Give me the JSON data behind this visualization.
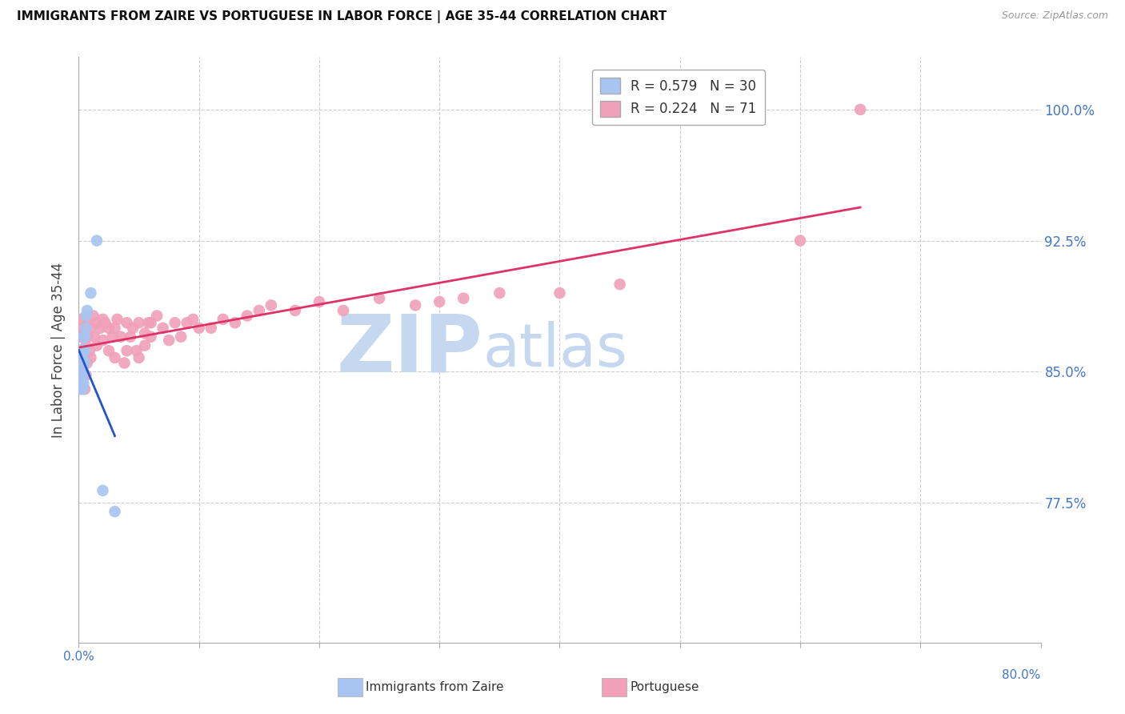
{
  "title": "IMMIGRANTS FROM ZAIRE VS PORTUGUESE IN LABOR FORCE | AGE 35-44 CORRELATION CHART",
  "source": "Source: ZipAtlas.com",
  "ylabel": "In Labor Force | Age 35-44",
  "ytick_labels": [
    "100.0%",
    "92.5%",
    "85.0%",
    "77.5%"
  ],
  "ytick_values": [
    1.0,
    0.925,
    0.85,
    0.775
  ],
  "xmin": 0.0,
  "xmax": 0.8,
  "ymin": 0.695,
  "ymax": 1.03,
  "blue_R": 0.579,
  "blue_N": 30,
  "pink_R": 0.224,
  "pink_N": 71,
  "blue_color": "#a8c4f0",
  "pink_color": "#f0a0b8",
  "blue_line_color": "#2255cc",
  "pink_line_color": "#dd3366",
  "watermark_zip": "ZIP",
  "watermark_atlas": "atlas",
  "watermark_color": "#c5d8f0",
  "legend_label_blue": "Immigrants from Zaire",
  "legend_label_pink": "Portuguese",
  "blue_scatter_x": [
    0.0,
    0.0,
    0.001,
    0.001,
    0.001,
    0.001,
    0.002,
    0.002,
    0.002,
    0.002,
    0.003,
    0.003,
    0.003,
    0.003,
    0.003,
    0.004,
    0.004,
    0.004,
    0.004,
    0.004,
    0.005,
    0.005,
    0.005,
    0.006,
    0.006,
    0.007,
    0.01,
    0.015,
    0.02,
    0.03
  ],
  "blue_scatter_y": [
    0.848,
    0.843,
    0.84,
    0.845,
    0.85,
    0.855,
    0.842,
    0.848,
    0.852,
    0.858,
    0.84,
    0.845,
    0.85,
    0.855,
    0.86,
    0.843,
    0.85,
    0.856,
    0.863,
    0.87,
    0.855,
    0.862,
    0.87,
    0.875,
    0.882,
    0.885,
    0.895,
    0.925,
    0.782,
    0.77
  ],
  "pink_scatter_x": [
    0.001,
    0.002,
    0.002,
    0.003,
    0.003,
    0.004,
    0.004,
    0.005,
    0.005,
    0.006,
    0.006,
    0.007,
    0.007,
    0.008,
    0.009,
    0.01,
    0.01,
    0.012,
    0.013,
    0.015,
    0.015,
    0.018,
    0.02,
    0.02,
    0.022,
    0.025,
    0.025,
    0.028,
    0.03,
    0.03,
    0.032,
    0.035,
    0.038,
    0.04,
    0.04,
    0.043,
    0.045,
    0.048,
    0.05,
    0.05,
    0.055,
    0.055,
    0.058,
    0.06,
    0.06,
    0.065,
    0.07,
    0.075,
    0.08,
    0.085,
    0.09,
    0.095,
    0.1,
    0.11,
    0.12,
    0.13,
    0.14,
    0.15,
    0.16,
    0.18,
    0.2,
    0.22,
    0.25,
    0.28,
    0.3,
    0.32,
    0.35,
    0.4,
    0.45,
    0.6,
    0.65
  ],
  "pink_scatter_y": [
    0.87,
    0.85,
    0.88,
    0.845,
    0.855,
    0.862,
    0.875,
    0.84,
    0.858,
    0.848,
    0.865,
    0.87,
    0.855,
    0.878,
    0.862,
    0.858,
    0.875,
    0.882,
    0.87,
    0.865,
    0.878,
    0.875,
    0.868,
    0.88,
    0.878,
    0.862,
    0.875,
    0.87,
    0.858,
    0.875,
    0.88,
    0.87,
    0.855,
    0.862,
    0.878,
    0.87,
    0.875,
    0.862,
    0.858,
    0.878,
    0.872,
    0.865,
    0.878,
    0.87,
    0.878,
    0.882,
    0.875,
    0.868,
    0.878,
    0.87,
    0.878,
    0.88,
    0.875,
    0.875,
    0.88,
    0.878,
    0.882,
    0.885,
    0.888,
    0.885,
    0.89,
    0.885,
    0.892,
    0.888,
    0.89,
    0.892,
    0.895,
    0.895,
    0.9,
    0.925,
    1.0
  ]
}
